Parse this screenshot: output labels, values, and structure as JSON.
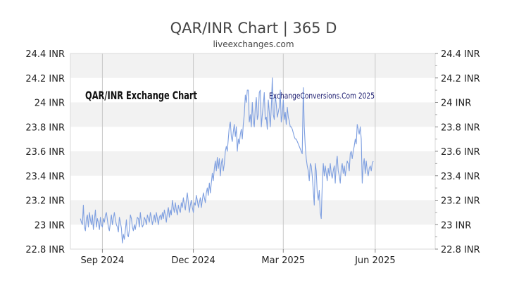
{
  "chart_data": {
    "type": "line",
    "title": "QAR/INR Chart | 365 D",
    "subtitle": "liveexchanges.com",
    "inner_title": "QAR/INR Exchange Chart",
    "watermark": "ExchangeConversions.Com 2025",
    "xlabel": "",
    "ylabel": "",
    "ylim": [
      22.8,
      24.4
    ],
    "y_ticks": [
      {
        "value": 22.8,
        "label": "22.8 INR"
      },
      {
        "value": 23.0,
        "label": "23 INR"
      },
      {
        "value": 23.2,
        "label": "23.2 INR"
      },
      {
        "value": 23.4,
        "label": "23.4 INR"
      },
      {
        "value": 23.6,
        "label": "23.6 INR"
      },
      {
        "value": 23.8,
        "label": "23.8 INR"
      },
      {
        "value": 24.0,
        "label": "24 INR"
      },
      {
        "value": 24.2,
        "label": "24.2 INR"
      },
      {
        "value": 24.4,
        "label": "24.4 INR"
      }
    ],
    "x_range": [
      0,
      365
    ],
    "x_ticks": [
      {
        "day": 32,
        "label": "Sep 2024"
      },
      {
        "day": 123,
        "label": "Dec 2024"
      },
      {
        "day": 213,
        "label": "Mar 2025"
      },
      {
        "day": 305,
        "label": "Jun 2025"
      }
    ],
    "series": [
      {
        "name": "QAR/INR",
        "color": "#7e9fe0",
        "points": [
          [
            10,
            23.05
          ],
          [
            11,
            23.02
          ],
          [
            12,
            23.0
          ],
          [
            13,
            23.16
          ],
          [
            14,
            22.98
          ],
          [
            15,
            22.95
          ],
          [
            16,
            23.05
          ],
          [
            17,
            23.08
          ],
          [
            18,
            22.98
          ],
          [
            19,
            23.1
          ],
          [
            20,
            23.04
          ],
          [
            21,
            23.0
          ],
          [
            22,
            23.08
          ],
          [
            23,
            22.96
          ],
          [
            24,
            23.04
          ],
          [
            25,
            23.12
          ],
          [
            26,
            22.98
          ],
          [
            27,
            23.05
          ],
          [
            28,
            23.02
          ],
          [
            29,
            22.96
          ],
          [
            30,
            23.06
          ],
          [
            31,
            23.0
          ],
          [
            32,
            22.98
          ],
          [
            33,
            23.05
          ],
          [
            34,
            23.02
          ],
          [
            35,
            23.08
          ],
          [
            36,
            23.1
          ],
          [
            37,
            23.04
          ],
          [
            38,
            22.98
          ],
          [
            39,
            22.95
          ],
          [
            40,
            23.02
          ],
          [
            41,
            23.08
          ],
          [
            42,
            23.0
          ],
          [
            43,
            23.05
          ],
          [
            44,
            23.1
          ],
          [
            45,
            23.04
          ],
          [
            46,
            23.0
          ],
          [
            47,
            22.98
          ],
          [
            48,
            22.94
          ],
          [
            49,
            23.06
          ],
          [
            50,
            23.02
          ],
          [
            51,
            22.97
          ],
          [
            52,
            22.85
          ],
          [
            53,
            22.92
          ],
          [
            54,
            22.88
          ],
          [
            55,
            22.96
          ],
          [
            56,
            23.04
          ],
          [
            57,
            22.92
          ],
          [
            58,
            22.9
          ],
          [
            59,
            22.96
          ],
          [
            60,
            23.08
          ],
          [
            61,
            23.05
          ],
          [
            62,
            22.98
          ],
          [
            63,
            22.95
          ],
          [
            64,
            23.0
          ],
          [
            65,
            22.96
          ],
          [
            66,
            23.02
          ],
          [
            67,
            23.06
          ],
          [
            68,
            23.05
          ],
          [
            69,
            22.98
          ],
          [
            70,
            23.1
          ],
          [
            71,
            23.02
          ],
          [
            72,
            22.98
          ],
          [
            73,
            23.0
          ],
          [
            74,
            23.06
          ],
          [
            75,
            23.04
          ],
          [
            76,
            23.0
          ],
          [
            77,
            23.08
          ],
          [
            78,
            23.05
          ],
          [
            79,
            23.02
          ],
          [
            80,
            23.1
          ],
          [
            81,
            23.06
          ],
          [
            82,
            23.0
          ],
          [
            83,
            23.04
          ],
          [
            84,
            23.08
          ],
          [
            85,
            23.02
          ],
          [
            86,
            23.1
          ],
          [
            87,
            23.05
          ],
          [
            88,
            23.0
          ],
          [
            89,
            23.06
          ],
          [
            90,
            23.08
          ],
          [
            91,
            23.04
          ],
          [
            92,
            23.1
          ],
          [
            93,
            23.05
          ],
          [
            94,
            23.12
          ],
          [
            95,
            23.08
          ],
          [
            96,
            23.02
          ],
          [
            97,
            23.1
          ],
          [
            98,
            23.14
          ],
          [
            99,
            23.06
          ],
          [
            100,
            23.12
          ],
          [
            101,
            23.08
          ],
          [
            102,
            23.2
          ],
          [
            103,
            23.14
          ],
          [
            104,
            23.1
          ],
          [
            105,
            23.18
          ],
          [
            106,
            23.12
          ],
          [
            107,
            23.08
          ],
          [
            108,
            23.16
          ],
          [
            109,
            23.12
          ],
          [
            110,
            23.1
          ],
          [
            111,
            23.18
          ],
          [
            112,
            23.14
          ],
          [
            113,
            23.22
          ],
          [
            114,
            23.16
          ],
          [
            115,
            23.12
          ],
          [
            116,
            23.2
          ],
          [
            117,
            23.26
          ],
          [
            118,
            23.18
          ],
          [
            119,
            23.1
          ],
          [
            120,
            23.16
          ],
          [
            121,
            23.2
          ],
          [
            122,
            23.14
          ],
          [
            123,
            23.1
          ],
          [
            124,
            23.18
          ],
          [
            125,
            23.16
          ],
          [
            126,
            23.24
          ],
          [
            127,
            23.2
          ],
          [
            128,
            23.14
          ],
          [
            129,
            23.18
          ],
          [
            130,
            23.22
          ],
          [
            131,
            23.14
          ],
          [
            132,
            23.2
          ],
          [
            133,
            23.26
          ],
          [
            134,
            23.22
          ],
          [
            135,
            23.18
          ],
          [
            136,
            23.26
          ],
          [
            137,
            23.3
          ],
          [
            138,
            23.24
          ],
          [
            139,
            23.34
          ],
          [
            140,
            23.26
          ],
          [
            141,
            23.34
          ],
          [
            142,
            23.42
          ],
          [
            143,
            23.36
          ],
          [
            144,
            23.46
          ],
          [
            145,
            23.52
          ],
          [
            146,
            23.44
          ],
          [
            147,
            23.55
          ],
          [
            148,
            23.46
          ],
          [
            149,
            23.54
          ],
          [
            150,
            23.4
          ],
          [
            151,
            23.5
          ],
          [
            152,
            23.54
          ],
          [
            153,
            23.44
          ],
          [
            154,
            23.5
          ],
          [
            155,
            23.6
          ],
          [
            156,
            23.64
          ],
          [
            157,
            23.6
          ],
          [
            158,
            23.7
          ],
          [
            159,
            23.8
          ],
          [
            160,
            23.84
          ],
          [
            161,
            23.72
          ],
          [
            162,
            23.68
          ],
          [
            163,
            23.76
          ],
          [
            164,
            23.82
          ],
          [
            165,
            23.72
          ],
          [
            166,
            23.8
          ],
          [
            167,
            23.6
          ],
          [
            168,
            23.7
          ],
          [
            169,
            23.66
          ],
          [
            170,
            23.74
          ],
          [
            171,
            23.78
          ],
          [
            172,
            23.7
          ],
          [
            173,
            23.82
          ],
          [
            174,
            23.9
          ],
          [
            175,
            24.06
          ],
          [
            176,
            24.0
          ],
          [
            177,
            24.1
          ],
          [
            178,
            24.1
          ],
          [
            179,
            23.84
          ],
          [
            180,
            23.9
          ],
          [
            181,
            23.8
          ],
          [
            182,
            24.0
          ],
          [
            183,
            23.85
          ],
          [
            184,
            23.8
          ],
          [
            185,
            23.95
          ],
          [
            186,
            24.04
          ],
          [
            187,
            23.86
          ],
          [
            188,
            23.9
          ],
          [
            189,
            24.08
          ],
          [
            190,
            24.1
          ],
          [
            191,
            23.8
          ],
          [
            192,
            23.9
          ],
          [
            193,
            23.98
          ],
          [
            194,
            24.08
          ],
          [
            195,
            23.86
          ],
          [
            196,
            23.88
          ],
          [
            197,
            23.78
          ],
          [
            198,
            24.02
          ],
          [
            199,
            23.92
          ],
          [
            200,
            23.8
          ],
          [
            201,
            23.96
          ],
          [
            202,
            24.2
          ],
          [
            203,
            23.9
          ],
          [
            204,
            23.86
          ],
          [
            205,
            24.06
          ],
          [
            206,
            23.98
          ],
          [
            207,
            23.88
          ],
          [
            208,
            23.92
          ],
          [
            209,
            23.96
          ],
          [
            210,
            24.1
          ],
          [
            211,
            23.84
          ],
          [
            212,
            23.9
          ],
          [
            213,
            24.02
          ],
          [
            214,
            23.86
          ],
          [
            215,
            23.92
          ],
          [
            216,
            23.82
          ],
          [
            217,
            23.96
          ],
          [
            218,
            23.88
          ],
          [
            219,
            23.85
          ],
          [
            220,
            23.8
          ],
          [
            221,
            23.8
          ],
          [
            222,
            23.78
          ],
          [
            223,
            23.75
          ],
          [
            224,
            23.72
          ],
          [
            225,
            23.7
          ],
          [
            226,
            23.7
          ],
          [
            227,
            23.68
          ],
          [
            228,
            23.66
          ],
          [
            229,
            23.64
          ],
          [
            230,
            23.62
          ],
          [
            231,
            23.6
          ],
          [
            232,
            23.58
          ],
          [
            233,
            24.12
          ],
          [
            234,
            23.8
          ],
          [
            235,
            23.64
          ],
          [
            236,
            23.54
          ],
          [
            237,
            23.48
          ],
          [
            238,
            23.44
          ],
          [
            239,
            23.36
          ],
          [
            240,
            23.5
          ],
          [
            241,
            23.48
          ],
          [
            242,
            23.4
          ],
          [
            243,
            23.28
          ],
          [
            244,
            23.16
          ],
          [
            245,
            23.5
          ],
          [
            246,
            23.44
          ],
          [
            247,
            23.26
          ],
          [
            248,
            23.2
          ],
          [
            249,
            23.28
          ],
          [
            250,
            23.1
          ],
          [
            251,
            23.05
          ],
          [
            252,
            23.32
          ],
          [
            253,
            23.5
          ],
          [
            254,
            23.4
          ],
          [
            255,
            23.48
          ],
          [
            256,
            23.42
          ],
          [
            257,
            23.36
          ],
          [
            258,
            23.46
          ],
          [
            259,
            23.4
          ],
          [
            260,
            23.5
          ],
          [
            261,
            23.42
          ],
          [
            262,
            23.38
          ],
          [
            263,
            23.44
          ],
          [
            264,
            23.48
          ],
          [
            265,
            23.34
          ],
          [
            266,
            23.5
          ],
          [
            267,
            23.56
          ],
          [
            268,
            23.44
          ],
          [
            269,
            23.4
          ],
          [
            270,
            23.34
          ],
          [
            271,
            23.46
          ],
          [
            272,
            23.5
          ],
          [
            273,
            23.42
          ],
          [
            274,
            23.48
          ],
          [
            275,
            23.4
          ],
          [
            276,
            23.46
          ],
          [
            277,
            23.52
          ],
          [
            278,
            23.5
          ],
          [
            279,
            23.44
          ],
          [
            280,
            23.58
          ],
          [
            281,
            23.6
          ],
          [
            282,
            23.54
          ],
          [
            283,
            23.6
          ],
          [
            284,
            23.64
          ],
          [
            285,
            23.7
          ],
          [
            286,
            23.66
          ],
          [
            287,
            23.82
          ],
          [
            288,
            23.78
          ],
          [
            289,
            23.74
          ],
          [
            290,
            23.8
          ],
          [
            291,
            23.7
          ],
          [
            292,
            23.34
          ],
          [
            293,
            23.48
          ],
          [
            294,
            23.54
          ],
          [
            295,
            23.42
          ],
          [
            296,
            23.52
          ],
          [
            297,
            23.44
          ],
          [
            298,
            23.4
          ],
          [
            299,
            23.46
          ],
          [
            300,
            23.48
          ],
          [
            301,
            23.44
          ],
          [
            302,
            23.5
          ],
          [
            303,
            23.52
          ]
        ]
      }
    ]
  }
}
